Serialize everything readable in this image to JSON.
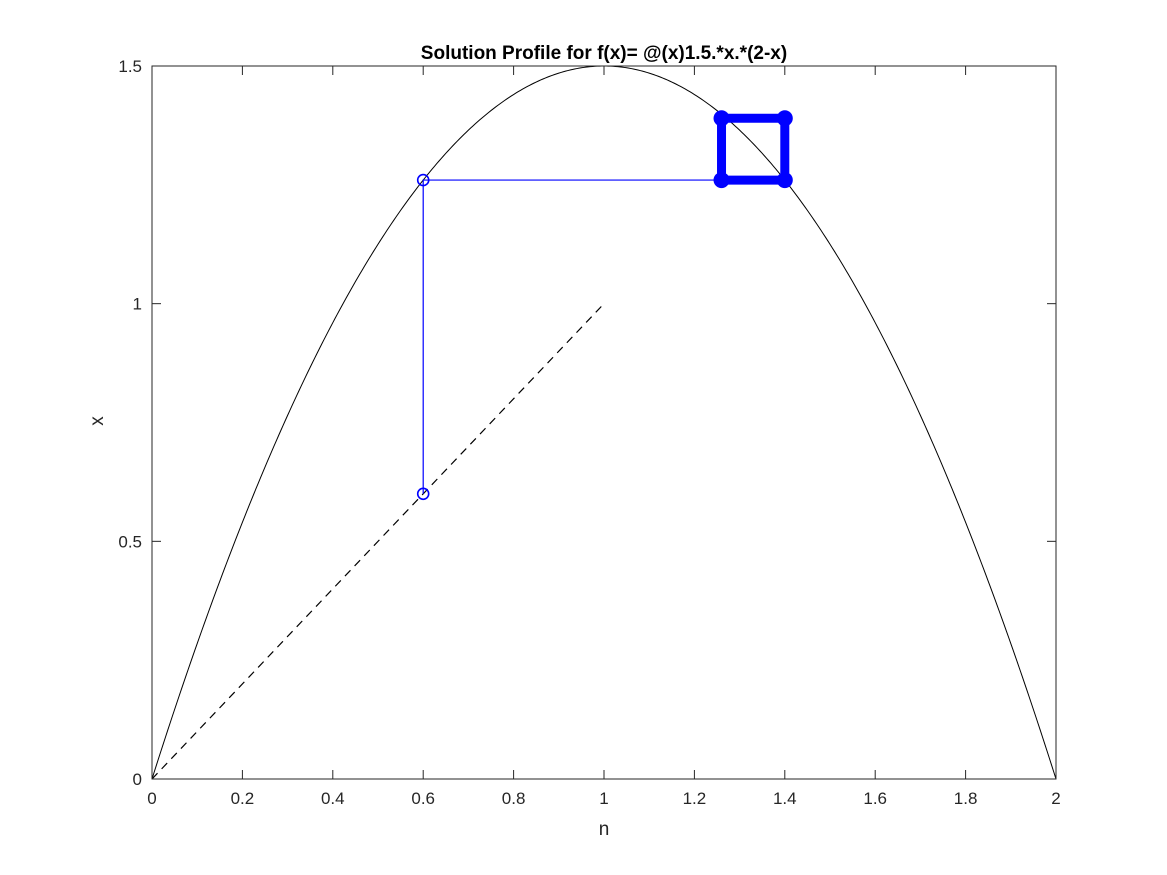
{
  "chart_data": {
    "type": "line",
    "title": "Solution Profile for f(x)= @(x)1.5.*x.*(2-x)",
    "xlabel": "n",
    "ylabel": "x",
    "xlim": [
      0,
      2
    ],
    "ylim": [
      0,
      1.5
    ],
    "xticks": [
      0,
      0.2,
      0.4,
      0.6,
      0.8,
      1,
      1.2,
      1.4,
      1.6,
      1.8,
      2
    ],
    "xtick_labels": [
      "0",
      "0.2",
      "0.4",
      "0.6",
      "0.8",
      "1",
      "1.2",
      "1.4",
      "1.6",
      "1.8",
      "2"
    ],
    "yticks": [
      0,
      0.5,
      1,
      1.5
    ],
    "ytick_labels": [
      "0",
      "0.5",
      "1",
      "1.5"
    ],
    "grid": false,
    "series": [
      {
        "role": "function-curve",
        "style": "solid",
        "color": "#000000",
        "function": "1.5*x*(2-x)",
        "domain": [
          0,
          2
        ]
      },
      {
        "role": "identity-line",
        "style": "dashed",
        "color": "#000000",
        "x": [
          0,
          1
        ],
        "y": [
          0,
          1
        ]
      },
      {
        "role": "cobweb-start",
        "style": "solid-with-open-circles",
        "color": "#0000ff",
        "x": [
          0.6,
          0.6,
          1.26
        ],
        "y": [
          0.6,
          1.26,
          1.26
        ]
      },
      {
        "role": "cobweb-cycle",
        "style": "thick-with-filled-circles",
        "color": "#0000ff",
        "x": [
          1.26,
          1.4,
          1.4,
          1.26,
          1.26
        ],
        "y": [
          1.26,
          1.26,
          1.39,
          1.39,
          1.26
        ]
      }
    ]
  }
}
